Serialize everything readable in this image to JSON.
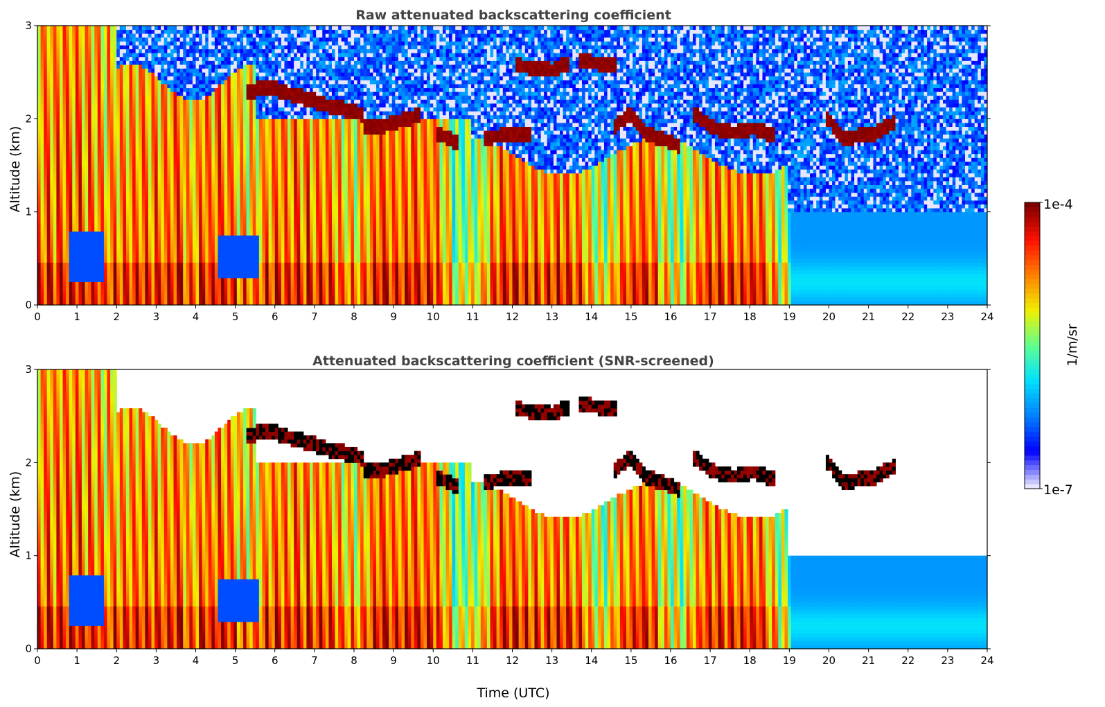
{
  "chart_data": [
    {
      "type": "heatmap",
      "title": "Raw attenuated backscattering coefficient",
      "xlabel": "",
      "ylabel": "Altitude (km)",
      "xlim": [
        0,
        24
      ],
      "ylim": [
        0,
        3
      ],
      "xticks": [
        0,
        1,
        2,
        3,
        4,
        5,
        6,
        7,
        8,
        9,
        10,
        11,
        12,
        13,
        14,
        15,
        16,
        17,
        18,
        19,
        20,
        21,
        22,
        23,
        24
      ],
      "yticks": [
        0,
        1,
        2,
        3
      ],
      "screened": false,
      "cloud_base_layers": [
        {
          "x": [
            5.3,
            5.8,
            6.3,
            6.8,
            7.3,
            7.8,
            8.2
          ],
          "y": [
            2.28,
            2.35,
            2.28,
            2.22,
            2.15,
            2.1,
            2.05
          ]
        },
        {
          "x": [
            8.3,
            8.8,
            9.3,
            9.6
          ],
          "y": [
            1.92,
            1.93,
            2.0,
            2.03
          ]
        },
        {
          "x": [
            10.1,
            10.6
          ],
          "y": [
            1.85,
            1.75
          ]
        },
        {
          "x": [
            11.3,
            11.8,
            12.4
          ],
          "y": [
            1.8,
            1.82,
            1.85
          ]
        },
        {
          "x": [
            12.1,
            12.6,
            13.0,
            13.4
          ],
          "y": [
            2.57,
            2.55,
            2.52,
            2.6
          ]
        },
        {
          "x": [
            13.7,
            14.2,
            14.6
          ],
          "y": [
            2.62,
            2.6,
            2.58
          ]
        },
        {
          "x": [
            14.6,
            15.0,
            15.4,
            15.8,
            16.2
          ],
          "y": [
            1.93,
            2.05,
            1.85,
            1.78,
            1.72
          ]
        },
        {
          "x": [
            16.6,
            17.1,
            17.6,
            18.1,
            18.6
          ],
          "y": [
            2.05,
            1.9,
            1.85,
            1.9,
            1.82
          ]
        },
        {
          "x": [
            20.0,
            20.4,
            20.8,
            21.2,
            21.6
          ],
          "y": [
            2.0,
            1.78,
            1.83,
            1.85,
            1.95
          ]
        }
      ]
    },
    {
      "type": "heatmap",
      "title": "Attenuated backscattering coefficient (SNR-screened)",
      "xlabel": "Time (UTC)",
      "ylabel": "Altitude (km)",
      "xlim": [
        0,
        24
      ],
      "ylim": [
        0,
        3
      ],
      "xticks": [
        0,
        1,
        2,
        3,
        4,
        5,
        6,
        7,
        8,
        9,
        10,
        11,
        12,
        13,
        14,
        15,
        16,
        17,
        18,
        19,
        20,
        21,
        22,
        23,
        24
      ],
      "yticks": [
        0,
        1,
        2,
        3
      ],
      "screened": true
    }
  ],
  "colorbar": {
    "label": "1/m/sr",
    "min_label": "1e-7",
    "max_label": "1e-4",
    "scale": "log",
    "colormap": [
      "#e6e6ff",
      "#0000ff",
      "#0080ff",
      "#00e0ff",
      "#60ff90",
      "#f0f000",
      "#ff8000",
      "#ff1000",
      "#800000"
    ]
  },
  "colors": {
    "title": "#444444",
    "cloud_core": "#8b0000",
    "background_noise": "#1010ff"
  }
}
